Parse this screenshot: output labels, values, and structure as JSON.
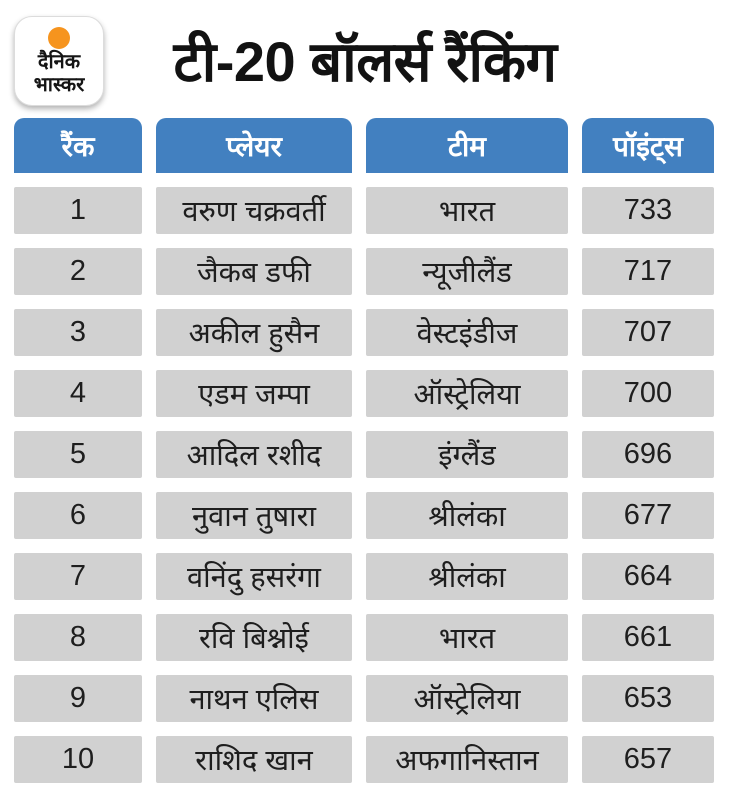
{
  "brand": {
    "logo_line1": "दैनिक",
    "logo_line2": "भास्कर"
  },
  "chart_data": {
    "type": "table",
    "title": "टी-20 बॉलर्स रैंकिंग",
    "columns": [
      "रैंक",
      "प्लेयर",
      "टीम",
      "पॉइंट्स"
    ],
    "rows": [
      {
        "rank": "1",
        "player": "वरुण चक्रवर्ती",
        "team": "भारत",
        "points": "733"
      },
      {
        "rank": "2",
        "player": "जैकब डफी",
        "team": "न्यूजीलैंड",
        "points": "717"
      },
      {
        "rank": "3",
        "player": "अकील हुसैन",
        "team": "वेस्टइंडीज",
        "points": "707"
      },
      {
        "rank": "4",
        "player": "एडम जम्पा",
        "team": "ऑस्ट्रेलिया",
        "points": "700"
      },
      {
        "rank": "5",
        "player": "आदिल रशीद",
        "team": "इंग्लैंड",
        "points": "696"
      },
      {
        "rank": "6",
        "player": "नुवान तुषारा",
        "team": "श्रीलंका",
        "points": "677"
      },
      {
        "rank": "7",
        "player": "वनिंदु हसरंगा",
        "team": "श्रीलंका",
        "points": "664"
      },
      {
        "rank": "8",
        "player": "रवि बिश्नोई",
        "team": "भारत",
        "points": "661"
      },
      {
        "rank": "9",
        "player": "नाथन एलिस",
        "team": "ऑस्ट्रेलिया",
        "points": "653"
      },
      {
        "rank": "10",
        "player": "राशिद खान",
        "team": "अफगानिस्तान",
        "points": "657"
      }
    ]
  },
  "colors": {
    "background": "#ffffff",
    "header_blue": "#4280c0",
    "header_text": "#ffffff",
    "row_gray": "#d1d1d1",
    "cell_text": "#1e1e1e",
    "title_black": "#121212",
    "logo_orange": "#f6941e"
  }
}
